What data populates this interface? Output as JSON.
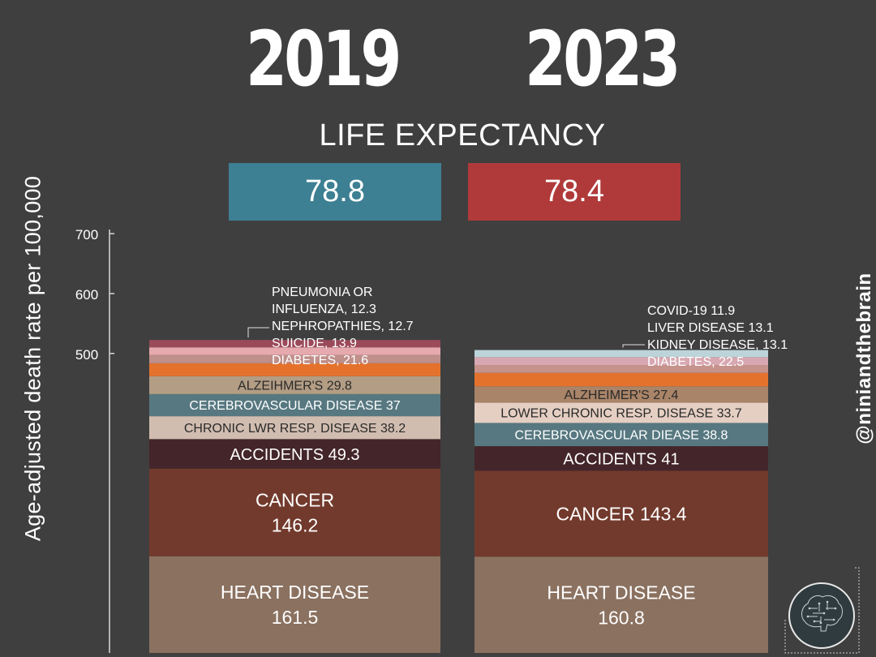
{
  "header": {
    "year_left": "2019",
    "year_right": "2023",
    "life_expectancy_title": "LIFE EXPECTANCY",
    "life_expectancy_2019": "78.8",
    "life_expectancy_2023": "78.4",
    "color_2019": "#3d7f93",
    "color_2023": "#b03a3a"
  },
  "chart_data": {
    "type": "bar",
    "stacked": true,
    "ylabel": "Age-adjusted death rate per 100,000",
    "yticks": [
      500,
      600,
      700
    ],
    "bars": [
      {
        "category": "2019",
        "segments": [
          {
            "label": "HEART DISEASE",
            "value": 161.5,
            "display": [
              "HEART DISEASE",
              "161.5"
            ],
            "color": "#8b7160"
          },
          {
            "label": "CANCER",
            "value": 146.2,
            "display": [
              "CANCER",
              "146.2"
            ],
            "color": "#723a2c"
          },
          {
            "label": "ACCIDENTS",
            "value": 49.3,
            "display": [
              "ACCIDENTS 49.3"
            ],
            "color": "#43252a"
          },
          {
            "label": "CHRONIC LWR RESP. DISEASE",
            "value": 38.2,
            "display": [
              "CHRONIC LWR RESP. DISEASE 38.2"
            ],
            "color": "#d1bdb0"
          },
          {
            "label": "CEREBROVASCULAR DISEASE",
            "value": 37,
            "display": [
              "CEREBROVASCULAR DISEASE 37"
            ],
            "color": "#577880"
          },
          {
            "label": "ALZEIHMER'S",
            "value": 29.8,
            "display": [
              "ALZEIHMER'S 29.8"
            ],
            "color": "#b39d84"
          },
          {
            "label": "DIABETES",
            "value": 21.6,
            "display": [],
            "color": "#e4722d"
          },
          {
            "label": "SUICIDE",
            "value": 13.9,
            "display": [],
            "color": "#bf8f8a"
          },
          {
            "label": "NEPHROPATHIES",
            "value": 12.7,
            "display": [],
            "color": "#e6a9ae"
          },
          {
            "label": "PNEUMONIA OR INFLUENZA",
            "value": 12.3,
            "display": [],
            "color": "#9b4a5a"
          }
        ],
        "callout": [
          "PNEUMONIA OR",
          "INFLUENZA, 12.3",
          "NEPHROPATHIES, 12.7",
          "SUICIDE, 13.9",
          "DIABETES, 21.6"
        ]
      },
      {
        "category": "2023",
        "segments": [
          {
            "label": "HEART DISEASE",
            "value": 160.8,
            "display": [
              "HEART DISEASE",
              "160.8"
            ],
            "color": "#8b7160"
          },
          {
            "label": "CANCER",
            "value": 143.4,
            "display": [
              "CANCER 143.4"
            ],
            "color": "#723a2c"
          },
          {
            "label": "ACCIDENTS",
            "value": 41,
            "display": [
              "ACCIDENTS 41"
            ],
            "color": "#43252a"
          },
          {
            "label": "CEREBROVASCULAR DIEASE",
            "value": 38.8,
            "display": [
              "CEREBROVASCULAR DIEASE 38.8"
            ],
            "color": "#577880"
          },
          {
            "label": "LOWER CHRONIC RESP. DISEASE",
            "value": 33.7,
            "display": [
              "LOWER CHRONIC RESP. DISEASE 33.7"
            ],
            "color": "#e5cfc3"
          },
          {
            "label": "ALZHEIMER'S",
            "value": 27.4,
            "display": [
              "ALZHEIMER'S 27.4"
            ],
            "color": "#a98468"
          },
          {
            "label": "DIABETES",
            "value": 22.5,
            "display": [],
            "color": "#e4722d"
          },
          {
            "label": "KIDNEY DISEASE",
            "value": 13.1,
            "display": [],
            "color": "#c6928c"
          },
          {
            "label": "LIVER DISEASE",
            "value": 13.1,
            "display": [],
            "color": "#d8a8b2"
          },
          {
            "label": "COVID-19",
            "value": 11.9,
            "display": [],
            "color": "#bcd3d9"
          }
        ],
        "callout": [
          "COVID-19 11.9",
          "LIVER DISEASE 13.1",
          "KIDNEY DISEASE, 13.1",
          "DIABETES, 22.5"
        ]
      }
    ]
  },
  "branding": {
    "handle": "@niniandthebrain"
  }
}
